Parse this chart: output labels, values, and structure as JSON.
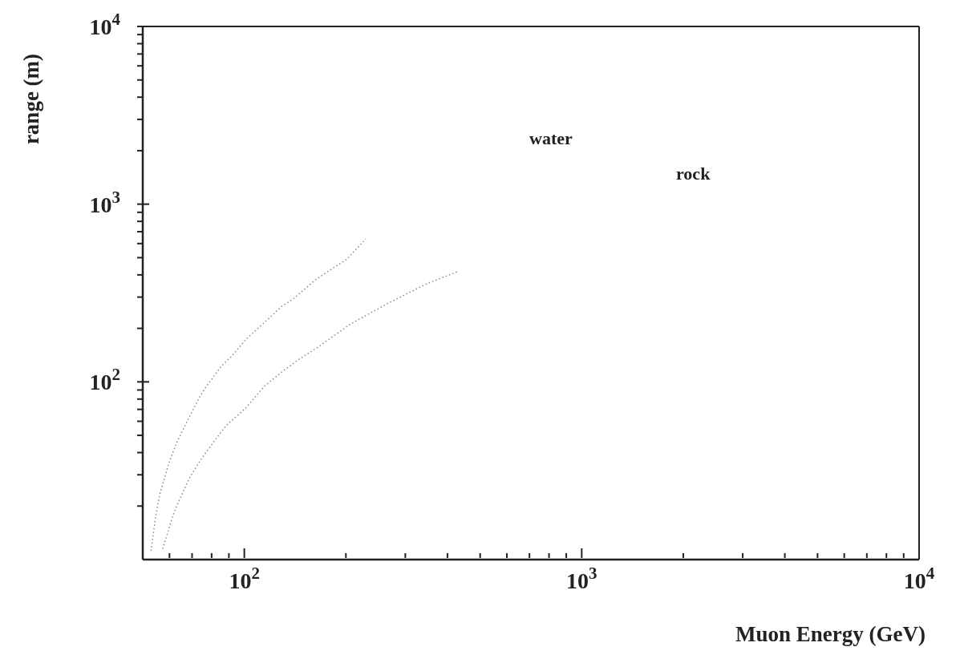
{
  "chart_data": {
    "type": "line",
    "xlabel": "Muon Energy (GeV)",
    "ylabel": "range (m)",
    "log": "xy",
    "grid": false,
    "legend": false,
    "marker": "none",
    "line_style": "dotted",
    "xlim": [
      50,
      10000
    ],
    "ylim": [
      10,
      10000
    ],
    "xticks": [
      {
        "value": 60,
        "label": null
      },
      {
        "value": 70,
        "label": null
      },
      {
        "value": 80,
        "label": null
      },
      {
        "value": 90,
        "label": null
      },
      {
        "value": 100,
        "label": "10$^{2}$"
      },
      {
        "value": 200,
        "label": null
      },
      {
        "value": 300,
        "label": null
      },
      {
        "value": 400,
        "label": null
      },
      {
        "value": 500,
        "label": null
      },
      {
        "value": 600,
        "label": null
      },
      {
        "value": 700,
        "label": null
      },
      {
        "value": 800,
        "label": null
      },
      {
        "value": 900,
        "label": null
      },
      {
        "value": 1000,
        "label": "10$^{3}$"
      },
      {
        "value": 2000,
        "label": null
      },
      {
        "value": 3000,
        "label": null
      },
      {
        "value": 4000,
        "label": null
      },
      {
        "value": 5000,
        "label": null
      },
      {
        "value": 6000,
        "label": null
      },
      {
        "value": 7000,
        "label": null
      },
      {
        "value": 8000,
        "label": null
      },
      {
        "value": 9000,
        "label": null
      },
      {
        "value": 10000,
        "label": "10$^{4}$"
      }
    ],
    "yticks": [
      {
        "value": 20,
        "label": null
      },
      {
        "value": 30,
        "label": null
      },
      {
        "value": 40,
        "label": null
      },
      {
        "value": 50,
        "label": null
      },
      {
        "value": 60,
        "label": null
      },
      {
        "value": 70,
        "label": null
      },
      {
        "value": 80,
        "label": null
      },
      {
        "value": 90,
        "label": null
      },
      {
        "value": 100,
        "label": "10$^{2}$"
      },
      {
        "value": 200,
        "label": null
      },
      {
        "value": 300,
        "label": null
      },
      {
        "value": 400,
        "label": null
      },
      {
        "value": 500,
        "label": null
      },
      {
        "value": 600,
        "label": null
      },
      {
        "value": 700,
        "label": null
      },
      {
        "value": 800,
        "label": null
      },
      {
        "value": 900,
        "label": null
      },
      {
        "value": 1000,
        "label": "10$^{3}$"
      },
      {
        "value": 2000,
        "label": null
      },
      {
        "value": 3000,
        "label": null
      },
      {
        "value": 4000,
        "label": null
      },
      {
        "value": 5000,
        "label": null
      },
      {
        "value": 6000,
        "label": null
      },
      {
        "value": 7000,
        "label": null
      },
      {
        "value": 8000,
        "label": null
      },
      {
        "value": 9000,
        "label": null
      },
      {
        "value": 10000,
        "label": "10$^{4}$"
      }
    ],
    "series": [
      {
        "color": "#8a8a8a",
        "x": [
          52.9,
          54.6,
          56.1,
          59.8,
          62.9,
          67.9,
          73.6,
          76.9,
          85.3,
          91.6,
          101,
          112,
          129,
          140,
          163,
          202,
          229
        ],
        "values": [
          11.2,
          17.5,
          23.1,
          35.1,
          45.1,
          60.8,
          81.9,
          93.3,
          122,
          139,
          173,
          207,
          266,
          294,
          377,
          493,
          638
        ]
      },
      {
        "color": "#8a8a8a",
        "x": [
          57.3,
          60.8,
          62.5,
          66.8,
          69.0,
          74.1,
          77.8,
          83.1,
          88.2,
          101,
          115,
          131,
          146,
          163,
          206,
          229,
          269,
          308,
          349,
          427
        ],
        "values": [
          11.5,
          16.6,
          19.3,
          25.5,
          29.1,
          36.2,
          41.2,
          48.8,
          56.6,
          71.3,
          95.1,
          116,
          135,
          154,
          211,
          236,
          279,
          318,
          358,
          416
        ]
      }
    ],
    "annotations": [
      "water",
      "rock"
    ]
  }
}
